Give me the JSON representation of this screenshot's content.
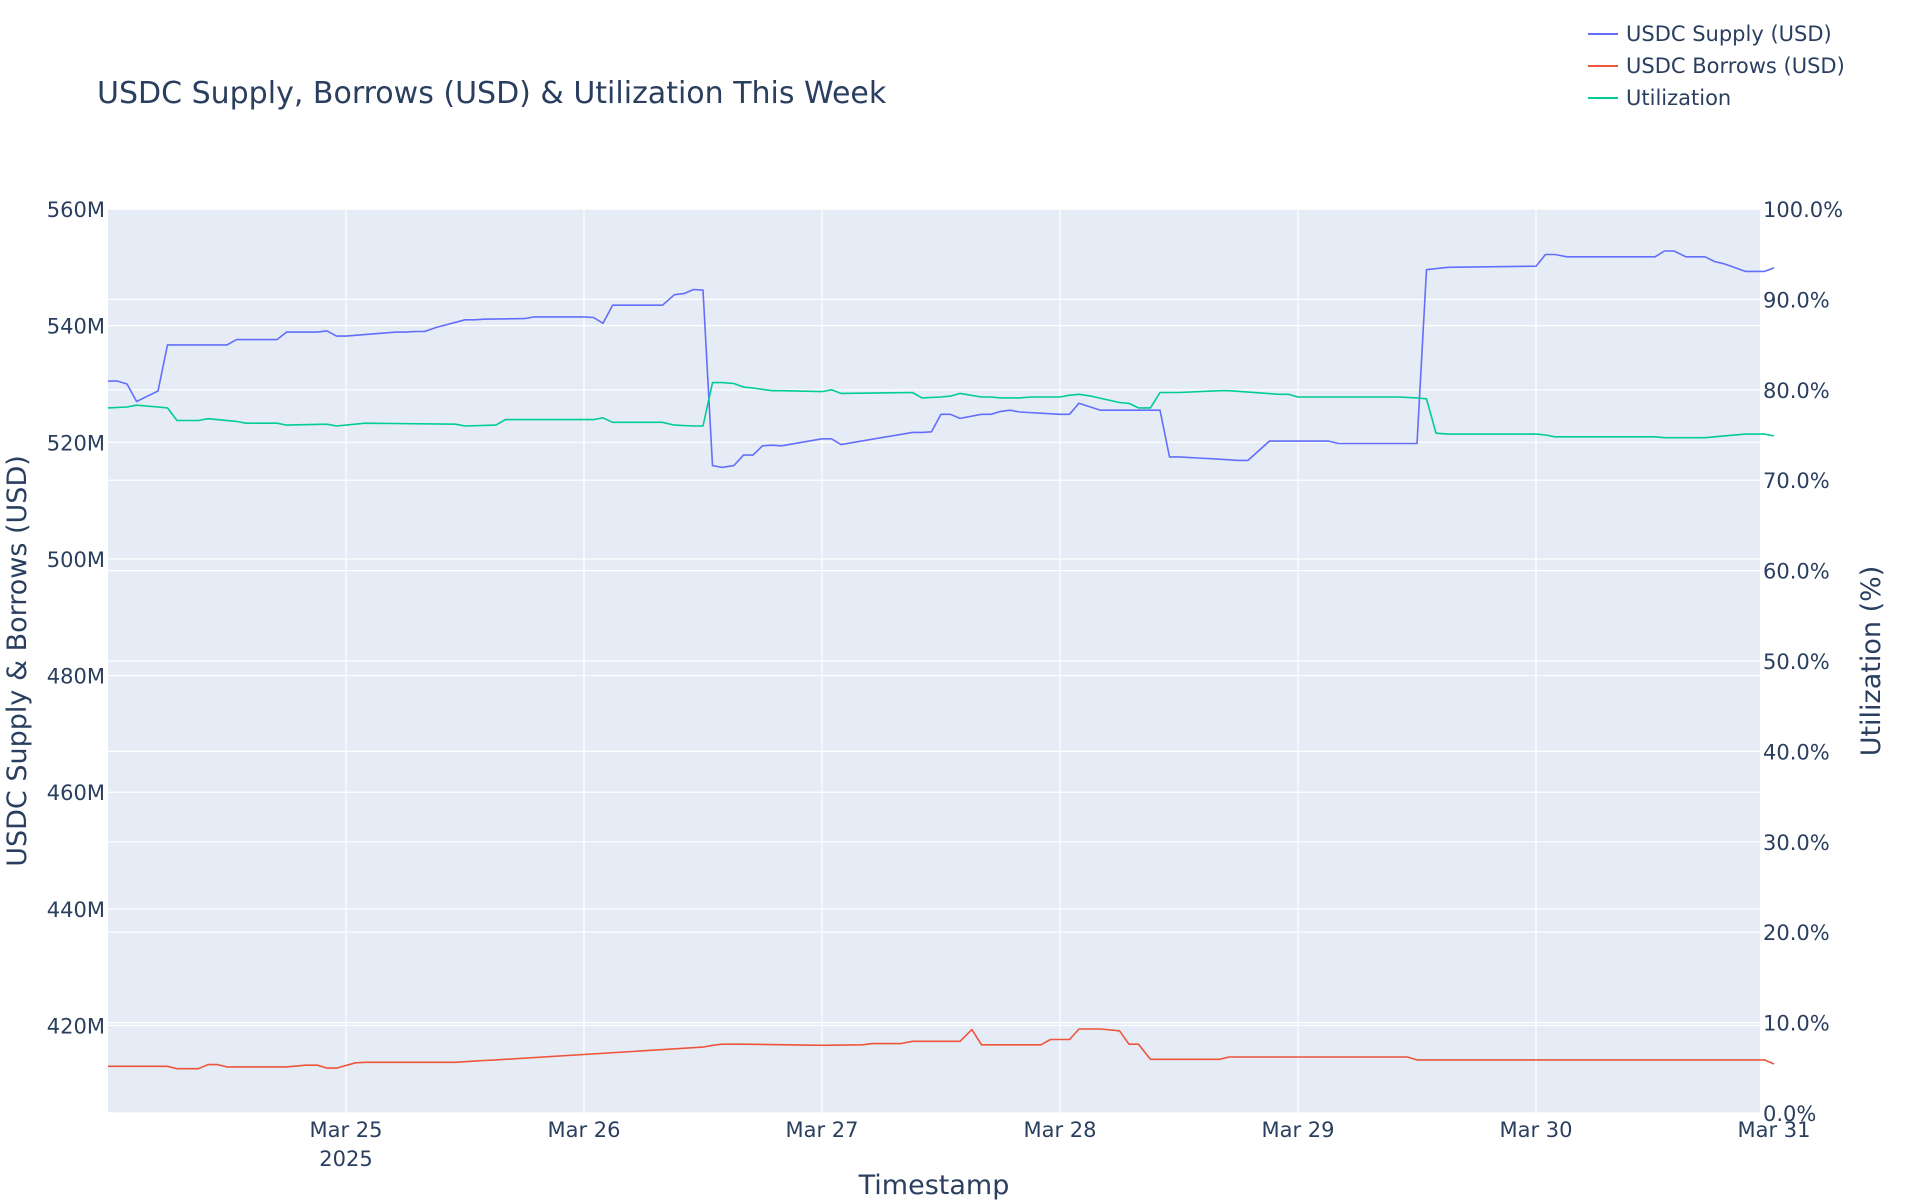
{
  "chart_data": {
    "type": "line",
    "title": "USDC Supply, Borrows (USD) & Utilization This Week",
    "xlabel": "Timestamp",
    "ylabel": "USDC Supply & Borrows (USD)",
    "y2label": "Utilization (%)",
    "x_range": [
      "2025-03-24T00:00",
      "2025-03-31T00:00"
    ],
    "ylim": [
      405000000,
      560000000
    ],
    "y2lim": [
      0,
      100
    ],
    "x_ticks": [
      {
        "label": "Mar 25",
        "sub": "2025",
        "t": 1
      },
      {
        "label": "Mar 26",
        "sub": "",
        "t": 2
      },
      {
        "label": "Mar 27",
        "sub": "",
        "t": 3
      },
      {
        "label": "Mar 28",
        "sub": "",
        "t": 4
      },
      {
        "label": "Mar 29",
        "sub": "",
        "t": 5
      },
      {
        "label": "Mar 30",
        "sub": "",
        "t": 6
      },
      {
        "label": "Mar 31",
        "sub": "",
        "t": 7
      }
    ],
    "y_ticks": [
      {
        "label": "420M",
        "v": 420000000
      },
      {
        "label": "440M",
        "v": 440000000
      },
      {
        "label": "460M",
        "v": 460000000
      },
      {
        "label": "480M",
        "v": 480000000
      },
      {
        "label": "500M",
        "v": 500000000
      },
      {
        "label": "520M",
        "v": 520000000
      },
      {
        "label": "540M",
        "v": 540000000
      },
      {
        "label": "560M",
        "v": 560000000
      }
    ],
    "y2_ticks": [
      {
        "label": "0.0%",
        "v": 0
      },
      {
        "label": "10.0%",
        "v": 10
      },
      {
        "label": "20.0%",
        "v": 20
      },
      {
        "label": "30.0%",
        "v": 30
      },
      {
        "label": "40.0%",
        "v": 40
      },
      {
        "label": "50.0%",
        "v": 50
      },
      {
        "label": "60.0%",
        "v": 60
      },
      {
        "label": "70.0%",
        "v": 70
      },
      {
        "label": "80.0%",
        "v": 80
      },
      {
        "label": "90.0%",
        "v": 90
      },
      {
        "label": "100.0%",
        "v": 100
      }
    ],
    "grid": true,
    "legend_position": "top-right",
    "series": [
      {
        "name": "USDC Supply (USD)",
        "color": "#636efa",
        "axis": "y",
        "x": [
          0,
          0.04,
          0.08,
          0.12,
          0.16,
          0.21,
          0.25,
          0.29,
          0.5,
          0.54,
          0.71,
          0.75,
          0.88,
          0.92,
          0.96,
          1.0,
          1.21,
          1.25,
          1.29,
          1.33,
          1.38,
          1.5,
          1.54,
          1.58,
          1.75,
          1.79,
          2.0,
          2.04,
          2.08,
          2.12,
          2.33,
          2.38,
          2.42,
          2.46,
          2.5,
          2.54,
          2.58,
          2.63,
          2.67,
          2.71,
          2.75,
          2.79,
          2.83,
          3.0,
          3.04,
          3.08,
          3.38,
          3.42,
          3.46,
          3.5,
          3.54,
          3.58,
          3.67,
          3.71,
          3.75,
          3.79,
          3.83,
          4.0,
          4.04,
          4.08,
          4.17,
          4.42,
          4.46,
          4.5,
          4.58,
          4.67,
          4.75,
          4.79,
          4.88,
          4.92,
          5.13,
          5.17,
          5.5,
          5.54,
          5.63,
          6.0,
          6.04,
          6.08,
          6.13,
          6.5,
          6.54,
          6.58,
          6.63,
          6.71,
          6.75,
          6.79,
          6.88,
          6.96,
          7.0
        ],
        "values": [
          530500000,
          530500000,
          530000000,
          527000000,
          527800000,
          528800000,
          536700000,
          536700000,
          536700000,
          537600000,
          537600000,
          538900000,
          538900000,
          539100000,
          538200000,
          538200000,
          538900000,
          538900000,
          539000000,
          539000000,
          539700000,
          541000000,
          541000000,
          541100000,
          541200000,
          541500000,
          541500000,
          541400000,
          540400000,
          543500000,
          543500000,
          545300000,
          545500000,
          546200000,
          546100000,
          516000000,
          515700000,
          516000000,
          517800000,
          517800000,
          519400000,
          519500000,
          519400000,
          520600000,
          520600000,
          519600000,
          521700000,
          521700000,
          521800000,
          524800000,
          524800000,
          524100000,
          524800000,
          524800000,
          525300000,
          525500000,
          525200000,
          524800000,
          524800000,
          526700000,
          525500000,
          525500000,
          517500000,
          517500000,
          517300000,
          517100000,
          516900000,
          516900000,
          520200000,
          520200000,
          520200000,
          519800000,
          519800000,
          549600000,
          550000000,
          550200000,
          552200000,
          552200000,
          551800000,
          551800000,
          552800000,
          552800000,
          551800000,
          551800000,
          551000000,
          550600000,
          549300000,
          549300000,
          549900000
        ]
      },
      {
        "name": "USDC Borrows (USD)",
        "color": "#ef553b",
        "axis": "y",
        "x": [
          0,
          0.25,
          0.29,
          0.38,
          0.42,
          0.46,
          0.5,
          0.71,
          0.75,
          0.83,
          0.88,
          0.92,
          0.96,
          1.04,
          1.08,
          1.21,
          1.46,
          1.54,
          1.58,
          1.63,
          2.5,
          2.54,
          2.58,
          2.63,
          2.67,
          3.0,
          3.17,
          3.21,
          3.33,
          3.38,
          3.42,
          3.54,
          3.58,
          3.63,
          3.67,
          3.92,
          3.96,
          4.04,
          4.08,
          4.17,
          4.25,
          4.29,
          4.33,
          4.38,
          4.42,
          4.67,
          4.71,
          5.0,
          5.46,
          5.5,
          5.63,
          6.5,
          6.92,
          6.96,
          7.0
        ],
        "values": [
          413000000,
          413000000,
          412600000,
          412600000,
          413300000,
          413300000,
          412900000,
          412900000,
          412900000,
          413200000,
          413200000,
          412700000,
          412700000,
          413600000,
          413700000,
          413700000,
          413700000,
          413900000,
          414000000,
          414100000,
          416300000,
          416600000,
          416800000,
          416800000,
          416800000,
          416600000,
          416700000,
          416900000,
          416900000,
          417300000,
          417300000,
          417300000,
          417300000,
          419300000,
          416700000,
          416700000,
          417600000,
          417600000,
          419400000,
          419400000,
          419100000,
          416800000,
          416800000,
          414200000,
          414200000,
          414200000,
          414600000,
          414600000,
          414600000,
          414100000,
          414100000,
          414100000,
          414100000,
          414100000,
          413400000
        ]
      },
      {
        "name": "Utilization",
        "color": "#00cc96",
        "axis": "y2",
        "x": [
          0,
          0.08,
          0.12,
          0.21,
          0.25,
          0.29,
          0.38,
          0.42,
          0.54,
          0.58,
          0.71,
          0.75,
          0.92,
          0.96,
          1.08,
          1.46,
          1.5,
          1.63,
          1.67,
          2.04,
          2.08,
          2.12,
          2.33,
          2.38,
          2.46,
          2.5,
          2.54,
          2.58,
          2.63,
          2.67,
          2.71,
          2.79,
          2.83,
          3.0,
          3.04,
          3.08,
          3.38,
          3.42,
          3.5,
          3.54,
          3.58,
          3.67,
          3.71,
          3.75,
          3.83,
          3.88,
          4.0,
          4.04,
          4.08,
          4.13,
          4.25,
          4.29,
          4.33,
          4.38,
          4.42,
          4.46,
          4.5,
          4.67,
          4.71,
          4.92,
          4.96,
          5.0,
          5.42,
          5.5,
          5.54,
          5.58,
          5.63,
          6.0,
          6.04,
          6.08,
          6.13,
          6.5,
          6.54,
          6.58,
          6.63,
          6.71,
          6.75,
          6.79,
          6.88,
          6.96,
          7.0
        ],
        "values": [
          78.0,
          78.1,
          78.3,
          78.1,
          78.0,
          76.6,
          76.6,
          76.8,
          76.5,
          76.3,
          76.3,
          76.1,
          76.2,
          76.0,
          76.3,
          76.2,
          76.0,
          76.1,
          76.7,
          76.7,
          76.9,
          76.4,
          76.4,
          76.1,
          76.0,
          76.0,
          80.8,
          80.8,
          80.7,
          80.3,
          80.2,
          79.9,
          79.9,
          79.8,
          80.0,
          79.6,
          79.7,
          79.1,
          79.2,
          79.3,
          79.6,
          79.2,
          79.2,
          79.1,
          79.1,
          79.2,
          79.2,
          79.4,
          79.5,
          79.3,
          78.6,
          78.5,
          78.0,
          78.0,
          79.7,
          79.7,
          79.7,
          79.9,
          79.9,
          79.5,
          79.5,
          79.2,
          79.2,
          79.1,
          79.0,
          75.2,
          75.1,
          75.1,
          75.0,
          74.8,
          74.8,
          74.8,
          74.7,
          74.7,
          74.7,
          74.7,
          74.8,
          74.9,
          75.1,
          75.1,
          74.9
        ]
      }
    ]
  }
}
